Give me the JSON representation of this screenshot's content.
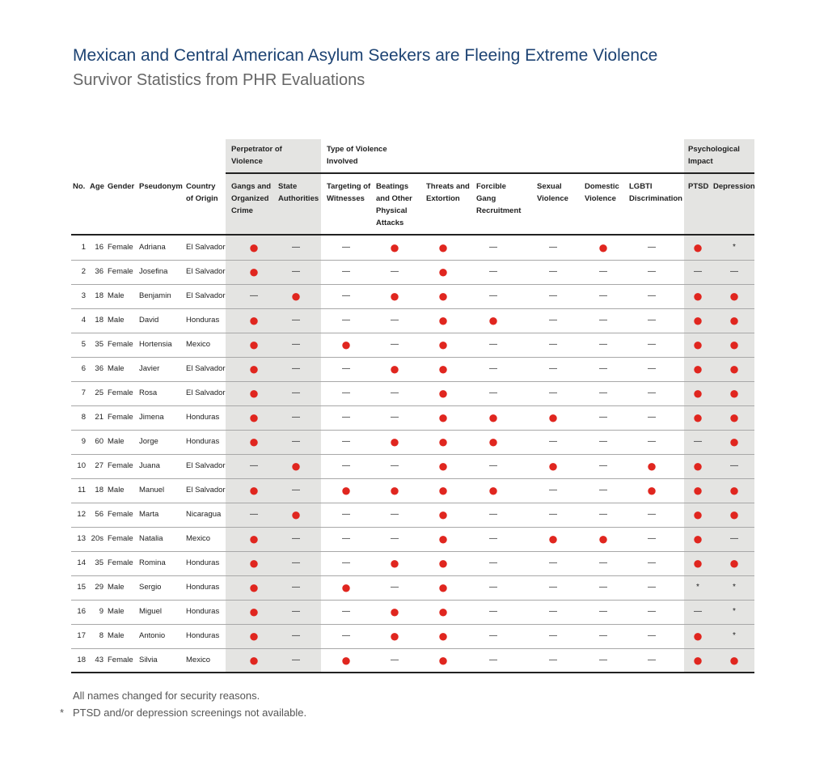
{
  "header": {
    "title": "Mexican and Central American Asylum Seekers are Fleeing Extreme Violence",
    "subtitle": "Survivor Statistics from PHR Evaluations"
  },
  "table": {
    "groups": [
      "Perpetrator of Violence",
      "Type of Violence Involved",
      "Psychological Impact"
    ],
    "columns": [
      "No.",
      "Age",
      "Gender",
      "Pseudonym",
      "Country of Origin",
      "Gangs and Organized Crime",
      "State Authorities",
      "Targeting of Witnesses",
      "Beatings and Other Physical Attacks",
      "Threats and Extortion",
      "Forcible Gang Recruitment",
      "Sexual Violence",
      "Domestic Violence",
      "LGBTI Discrimination",
      "PTSD",
      "Depression"
    ],
    "rows": [
      [
        1,
        16,
        "Female",
        "Adriana",
        "El Salvador",
        "●",
        "—",
        "—",
        "●",
        "●",
        "—",
        "—",
        "●",
        "—",
        "●",
        "*"
      ],
      [
        2,
        36,
        "Female",
        "Josefina",
        "El Salvador",
        "●",
        "—",
        "—",
        "—",
        "●",
        "—",
        "—",
        "—",
        "—",
        "—",
        "—"
      ],
      [
        3,
        18,
        "Male",
        "Benjamin",
        "El Salvador",
        "—",
        "●",
        "—",
        "●",
        "●",
        "—",
        "—",
        "—",
        "—",
        "●",
        "●"
      ],
      [
        4,
        18,
        "Male",
        "David",
        "Honduras",
        "●",
        "—",
        "—",
        "—",
        "●",
        "●",
        "—",
        "—",
        "—",
        "●",
        "●"
      ],
      [
        5,
        35,
        "Female",
        "Hortensia",
        "Mexico",
        "●",
        "—",
        "●",
        "—",
        "●",
        "—",
        "—",
        "—",
        "—",
        "●",
        "●"
      ],
      [
        6,
        36,
        "Male",
        "Javier",
        "El Salvador",
        "●",
        "—",
        "—",
        "●",
        "●",
        "—",
        "—",
        "—",
        "—",
        "●",
        "●"
      ],
      [
        7,
        25,
        "Female",
        "Rosa",
        "El Salvador",
        "●",
        "—",
        "—",
        "—",
        "●",
        "—",
        "—",
        "—",
        "—",
        "●",
        "●"
      ],
      [
        8,
        21,
        "Female",
        "Jimena",
        "Honduras",
        "●",
        "—",
        "—",
        "—",
        "●",
        "●",
        "●",
        "—",
        "—",
        "●",
        "●"
      ],
      [
        9,
        60,
        "Male",
        "Jorge",
        "Honduras",
        "●",
        "—",
        "—",
        "●",
        "●",
        "●",
        "—",
        "—",
        "—",
        "—",
        "●"
      ],
      [
        10,
        27,
        "Female",
        "Juana",
        "El Salvador",
        "—",
        "●",
        "—",
        "—",
        "●",
        "—",
        "●",
        "—",
        "●",
        "●",
        "—"
      ],
      [
        11,
        18,
        "Male",
        "Manuel",
        "El Salvador",
        "●",
        "—",
        "●",
        "●",
        "●",
        "●",
        "—",
        "—",
        "●",
        "●",
        "●"
      ],
      [
        12,
        56,
        "Female",
        "Marta",
        "Nicaragua",
        "—",
        "●",
        "—",
        "—",
        "●",
        "—",
        "—",
        "—",
        "—",
        "●",
        "●"
      ],
      [
        13,
        "20s",
        "Female",
        "Natalia",
        "Mexico",
        "●",
        "—",
        "—",
        "—",
        "●",
        "—",
        "●",
        "●",
        "—",
        "●",
        "—"
      ],
      [
        14,
        35,
        "Female",
        "Romina",
        "Honduras",
        "●",
        "—",
        "—",
        "●",
        "●",
        "—",
        "—",
        "—",
        "—",
        "●",
        "●"
      ],
      [
        15,
        29,
        "Male",
        "Sergio",
        "Honduras",
        "●",
        "—",
        "●",
        "—",
        "●",
        "—",
        "—",
        "—",
        "—",
        "*",
        "*"
      ],
      [
        16,
        9,
        "Male",
        "Miguel",
        "Honduras",
        "●",
        "—",
        "—",
        "●",
        "●",
        "—",
        "—",
        "—",
        "—",
        "—",
        "*"
      ],
      [
        17,
        8,
        "Male",
        "Antonio",
        "Honduras",
        "●",
        "—",
        "—",
        "●",
        "●",
        "—",
        "—",
        "—",
        "—",
        "●",
        "*"
      ],
      [
        18,
        43,
        "Female",
        "Silvia",
        "Mexico",
        "●",
        "—",
        "●",
        "—",
        "●",
        "—",
        "—",
        "—",
        "—",
        "●",
        "●"
      ]
    ]
  },
  "notes": {
    "names": "All names changed for security reasons.",
    "asterisk": {
      "marker": "*",
      "text": "PTSD and/or depression screenings not available."
    }
  }
}
